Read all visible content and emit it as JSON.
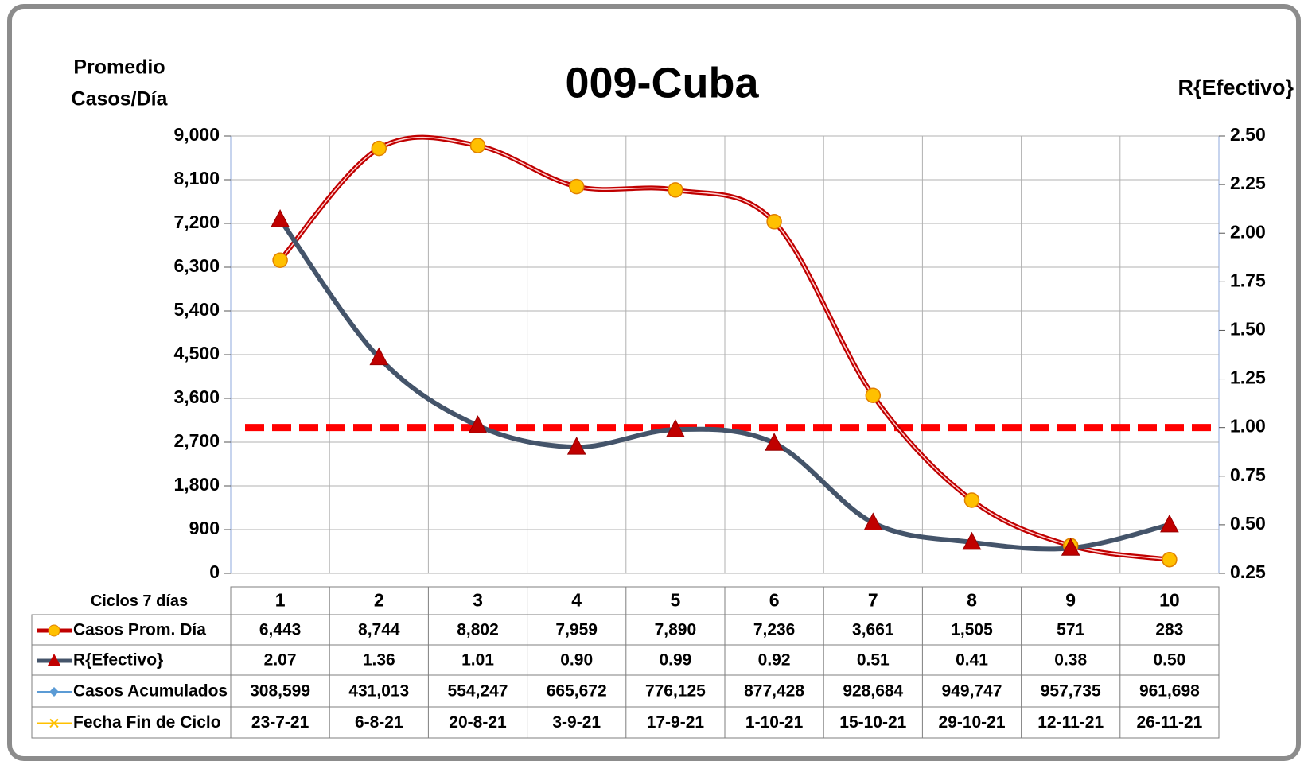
{
  "chart_data": {
    "type": "line",
    "title": "009-Cuba",
    "ylabel": [
      "Promedio",
      "Casos/Día"
    ],
    "y2label": "R{Efectivo}",
    "xlabel": "Ciclos 7 días",
    "categories": [
      "1",
      "2",
      "3",
      "4",
      "5",
      "6",
      "7",
      "8",
      "9",
      "10"
    ],
    "series": [
      {
        "name": "Casos Prom. Día",
        "color": "#c00000",
        "marker_color": "#ffc000",
        "values": [
          6443,
          8744,
          8802,
          7959,
          7890,
          7236,
          3661,
          1505,
          571,
          283
        ],
        "value_labels": [
          "6,443",
          "8,744",
          "8,802",
          "7,959",
          "7,890",
          "7,236",
          "3,661",
          "1,505",
          "571",
          "283"
        ]
      },
      {
        "name": "R{Efectivo}",
        "color": "#44546a",
        "marker_color": "#c00000",
        "axis": "y2",
        "values": [
          2.07,
          1.36,
          1.01,
          0.9,
          0.99,
          0.92,
          0.51,
          0.41,
          0.38,
          0.5
        ],
        "value_labels": [
          "2.07",
          "1.36",
          "1.01",
          "0.90",
          "0.99",
          "0.92",
          "0.51",
          "0.41",
          "0.38",
          "0.50"
        ]
      }
    ],
    "table_series": [
      {
        "name": "Casos Acumulados",
        "color": "#5b9bd5",
        "values": [
          308599,
          431013,
          554247,
          665672,
          776125,
          877428,
          928684,
          949747,
          957735,
          961698
        ],
        "value_labels": [
          "308,599",
          "431,013",
          "554,247",
          "665,672",
          "776,125",
          "877,428",
          "928,684",
          "949,747",
          "957,735",
          "961,698"
        ]
      },
      {
        "name": "Fecha Fin de Ciclo",
        "color": "#ffc000",
        "value_labels": [
          "23-7-21",
          "6-8-21",
          "20-8-21",
          "3-9-21",
          "17-9-21",
          "1-10-21",
          "15-10-21",
          "29-10-21",
          "12-11-21",
          "26-11-21"
        ]
      }
    ],
    "reference_line": {
      "value": 1,
      "axis": "y2",
      "color": "#ff0000"
    },
    "ylim": [
      0,
      9000
    ],
    "yticks": [
      0,
      900,
      {
        "value": 1800,
        "label": "1,800"
      },
      {
        "value": 2700,
        "label": "2,700"
      },
      {
        "value": 3600,
        "label": "3,600"
      },
      {
        "value": 4500,
        "label": "4,500"
      },
      {
        "value": 5400,
        "label": "5,400"
      },
      {
        "value": 6300,
        "label": "6,300"
      },
      {
        "value": 7200,
        "label": "7,200"
      },
      {
        "value": 8100,
        "label": "8,100"
      },
      {
        "value": 9000,
        "label": "9,000"
      }
    ],
    "y2lim": [
      0.25,
      2.5
    ],
    "y2ticks": [
      0.25,
      {
        "value": 0.5,
        "label": "0.50"
      },
      0.75,
      {
        "value": 1,
        "label": "1.00"
      },
      1.25,
      {
        "value": 1.5,
        "label": "1.50"
      },
      1.75,
      {
        "value": 2,
        "label": "2.00"
      },
      2.25,
      {
        "value": 2.5,
        "label": "2.50"
      }
    ],
    "grid": true
  }
}
